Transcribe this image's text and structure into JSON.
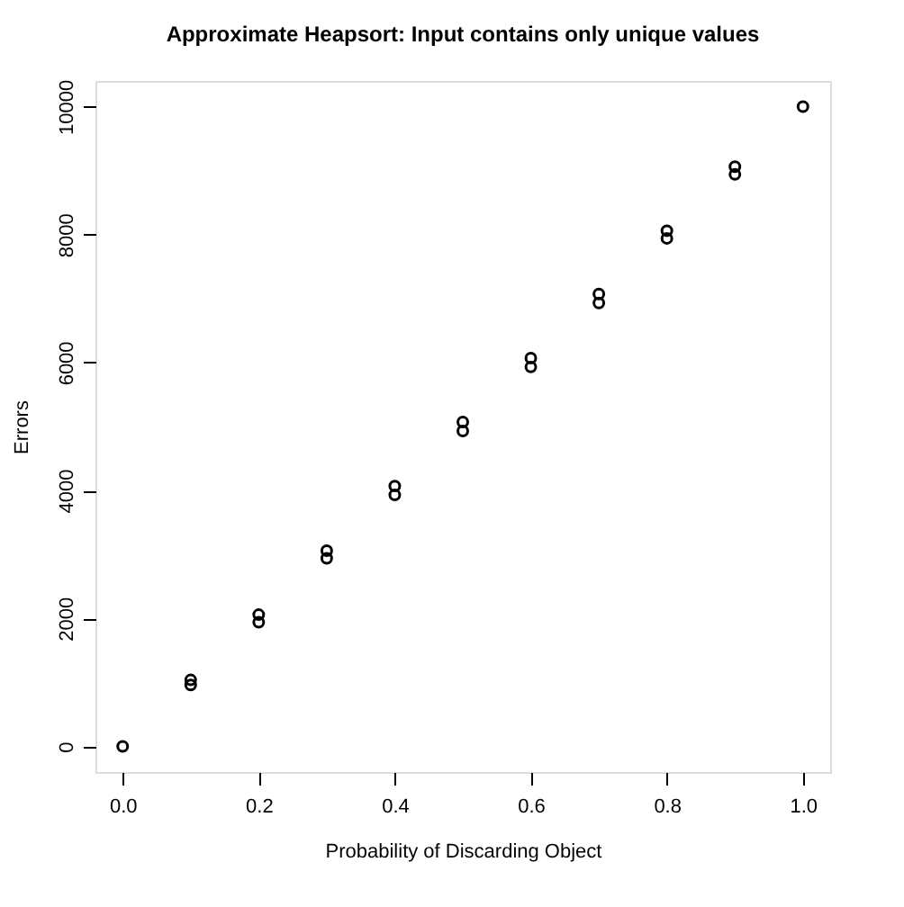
{
  "chart_data": {
    "type": "scatter",
    "title": "Approximate Heapsort: Input contains only unique values",
    "xlabel": "Probability of Discarding Object",
    "ylabel": "Errors",
    "x": [
      0,
      0.1,
      0.1,
      0.2,
      0.2,
      0.3,
      0.3,
      0.4,
      0.4,
      0.5,
      0.5,
      0.6,
      0.6,
      0.7,
      0.7,
      0.8,
      0.8,
      0.9,
      0.9,
      1.0
    ],
    "values": [
      0,
      960,
      1040,
      1940,
      2060,
      2940,
      3060,
      3930,
      4070,
      4930,
      5070,
      5930,
      6070,
      6930,
      7070,
      7940,
      8060,
      8940,
      9060,
      10000
    ],
    "color": "#000000",
    "marker": "circle",
    "xlim": [
      -0.04,
      1.04
    ],
    "ylim": [
      -400,
      10400
    ],
    "xticks": [
      {
        "value": 0,
        "label": "0.0"
      },
      {
        "value": 0.2,
        "label": "0.2"
      },
      {
        "value": 0.4,
        "label": "0.4"
      },
      {
        "value": 0.6,
        "label": "0.6"
      },
      {
        "value": 0.8,
        "label": "0.8"
      },
      {
        "value": 1.0,
        "label": "1.0"
      }
    ],
    "yticks": [
      0,
      2000,
      4000,
      6000,
      8000,
      10000
    ],
    "grid": false
  }
}
